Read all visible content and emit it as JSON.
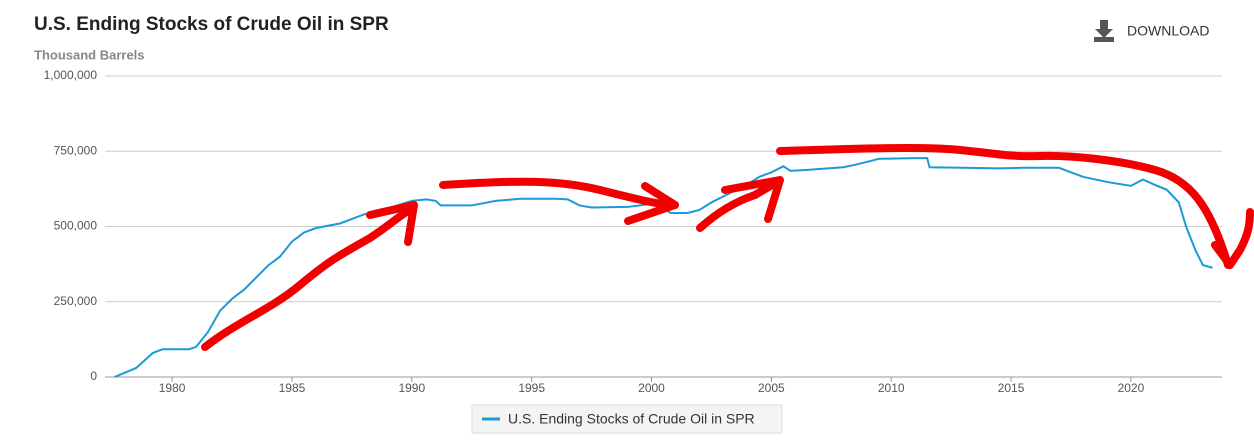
{
  "chart_data": {
    "type": "line",
    "title": "U.S. Ending Stocks of Crude Oil in SPR",
    "subtitle": "Thousand Barrels",
    "download": "DOWNLOAD",
    "xlim": [
      1977.2,
      2023.8
    ],
    "xticks": [
      1980,
      1985,
      1990,
      1995,
      2000,
      2005,
      2010,
      2015,
      2020
    ],
    "ylim": [
      0,
      1000000
    ],
    "yticks": [
      0,
      {
        "value": 250000,
        "label": "250,000"
      },
      {
        "value": 500000,
        "label": "500,000"
      },
      {
        "value": 750000,
        "label": "750,000"
      },
      {
        "value": 1000000,
        "label": "1,000,000"
      }
    ],
    "grid": true,
    "legend": "bottom",
    "x": [
      1977.6,
      1978.5,
      1979.2,
      1979.6,
      1980.7,
      1981.0,
      1981.5,
      1982.0,
      1982.5,
      1983.0,
      1983.5,
      1984.0,
      1984.5,
      1985.0,
      1985.5,
      1986.0,
      1987.0,
      1988.0,
      1989.0,
      1990.0,
      1990.6,
      1991.0,
      1991.2,
      1992.5,
      1993.5,
      1994.5,
      1996.0,
      1996.5,
      1997.0,
      1997.5,
      1999.0,
      1999.5,
      2000.0,
      2000.5,
      2000.8,
      2001.5,
      2002.0,
      2002.5,
      2003.0,
      2004.0,
      2004.5,
      2005.0,
      2005.5,
      2005.8,
      2006.5,
      2008.0,
      2008.5,
      2009.0,
      2009.5,
      2011.0,
      2011.5,
      2011.6,
      2013.0,
      2014.5,
      2015.0,
      2015.5,
      2017.0,
      2017.5,
      2018.0,
      2019.0,
      2020.0,
      2020.5,
      2021.0,
      2021.5,
      2022.0,
      2022.3,
      2022.7,
      2023.0,
      2023.4
    ],
    "series": [
      {
        "name": "U.S. Ending Stocks of Crude Oil in SPR",
        "color": "#1a9ad6",
        "values": [
          0,
          30000,
          80000,
          92000,
          92000,
          100000,
          150000,
          220000,
          260000,
          290000,
          330000,
          370000,
          400000,
          450000,
          480000,
          495000,
          510000,
          540000,
          560000,
          585000,
          590000,
          585000,
          570000,
          570000,
          585000,
          592000,
          592000,
          590000,
          570000,
          563000,
          565000,
          570000,
          575000,
          560000,
          545000,
          545000,
          555000,
          580000,
          600000,
          640000,
          665000,
          680000,
          700000,
          685000,
          688000,
          697000,
          705000,
          715000,
          725000,
          727000,
          727000,
          697000,
          695000,
          693000,
          694000,
          695000,
          695000,
          680000,
          665000,
          648000,
          635000,
          656000,
          638000,
          622000,
          580000,
          500000,
          420000,
          372000,
          363000
        ]
      }
    ]
  }
}
